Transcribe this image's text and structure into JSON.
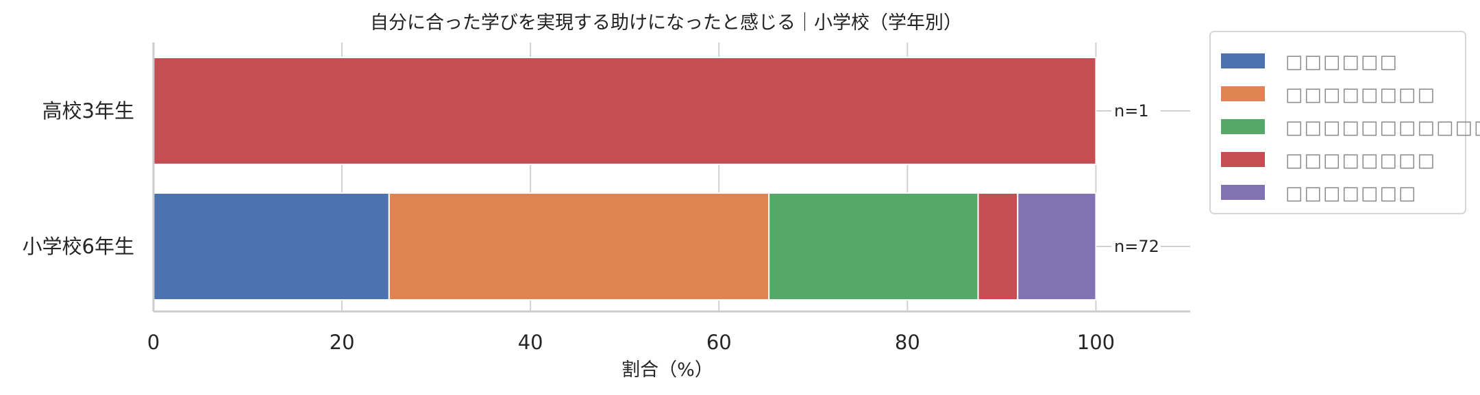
{
  "chart_data": {
    "type": "bar",
    "orientation": "horizontal",
    "stacked": true,
    "title": "自分に合った学びを実現する助けになったと感じる｜小学校（学年別）",
    "xlabel": "割合（%）",
    "ylabel": "",
    "xlim": [
      0,
      110
    ],
    "xticks": [
      "0",
      "20",
      "40",
      "60",
      "80",
      "100"
    ],
    "grid": "on (vertical)",
    "legend_position": "outside-right",
    "categories": [
      "高校3年生",
      "小学校6年生"
    ],
    "n_labels": [
      "n=1",
      "n=72"
    ],
    "series": [
      {
        "name": "□□□□□□",
        "color": "#4c72b0",
        "values": [
          0,
          25.0
        ]
      },
      {
        "name": "□□□□□□□□",
        "color": "#dd8452",
        "values": [
          0,
          40.3
        ]
      },
      {
        "name": "□□□□□□□□□□□□",
        "color": "#55a868",
        "values": [
          0,
          22.2
        ]
      },
      {
        "name": "□□□□□□□□",
        "color": "#c44e52",
        "values": [
          100,
          4.2
        ]
      },
      {
        "name": "□□□□□□□",
        "color": "#8172b3",
        "values": [
          0,
          8.3
        ]
      }
    ]
  }
}
